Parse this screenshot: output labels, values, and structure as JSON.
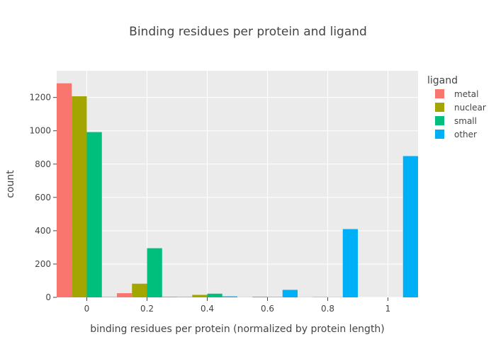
{
  "chart_data": {
    "type": "bar",
    "title": "Binding residues per protein and ligand",
    "xlabel": "binding residues per protein (normalized by protein length)",
    "ylabel": "count",
    "xlim": [
      -0.1,
      1.1
    ],
    "ylim": [
      0,
      1360
    ],
    "x_ticks": [
      {
        "value": 0,
        "label": "0"
      },
      {
        "value": 0.2,
        "label": "0.2"
      },
      {
        "value": 0.4,
        "label": "0.4"
      },
      {
        "value": 0.6,
        "label": "0.6"
      },
      {
        "value": 0.8,
        "label": "0.8"
      },
      {
        "value": 1,
        "label": "1"
      }
    ],
    "y_ticks": [
      {
        "value": 0,
        "label": "0"
      },
      {
        "value": 200,
        "label": "200"
      },
      {
        "value": 400,
        "label": "400"
      },
      {
        "value": 600,
        "label": "600"
      },
      {
        "value": 800,
        "label": "800"
      },
      {
        "value": 1000,
        "label": "1000"
      },
      {
        "value": 1200,
        "label": "1200"
      }
    ],
    "bin_centers": [
      0,
      0.2,
      0.4,
      0.6,
      0.8,
      1.0
    ],
    "bin_width": 0.2,
    "grid": true,
    "legend": {
      "title": "ligand",
      "position": "right"
    },
    "series": [
      {
        "name": "metal",
        "color": "#F8766D",
        "values": [
          1285,
          25,
          3,
          1,
          1,
          0
        ]
      },
      {
        "name": "nuclear",
        "color": "#A3A500",
        "values": [
          1207,
          82,
          15,
          4,
          2,
          0
        ]
      },
      {
        "name": "small",
        "color": "#00BF7D",
        "values": [
          992,
          295,
          22,
          2,
          1,
          0
        ]
      },
      {
        "name": "other",
        "color": "#00B0F6",
        "values": [
          2,
          3,
          6,
          45,
          410,
          848
        ]
      }
    ]
  }
}
